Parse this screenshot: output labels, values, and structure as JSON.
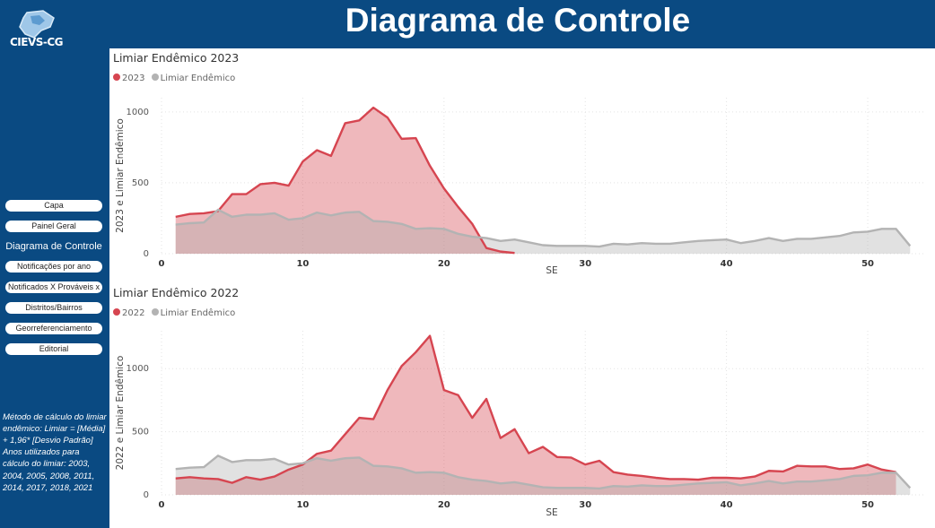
{
  "header": {
    "title": "Diagrama de Controle"
  },
  "logo": {
    "text": "CIEVS-CG"
  },
  "nav": {
    "items": [
      {
        "label": "Capa",
        "active": false
      },
      {
        "label": "Painel Geral",
        "active": false
      },
      {
        "label": "Diagrama de Controle",
        "active": true
      },
      {
        "label": "Notificações por ano",
        "active": false
      },
      {
        "label": "Notificados X Prováveis x",
        "active": false
      },
      {
        "label": "Distritos/Bairros",
        "active": false
      },
      {
        "label": "Georreferenciamento",
        "active": false
      },
      {
        "label": "Editorial",
        "active": false
      }
    ]
  },
  "method_note": "Método de cálculo do limiar endêmico: Limiar = [Média] + 1,96* [Desvio Padrão] Anos utilizados para cálculo do limiar: 2003, 2004, 2005, 2008, 2011, 2014, 2017, 2018, 2021",
  "colors": {
    "year_series": "#d64550",
    "threshold_series": "#b3b3b3"
  },
  "chart_data": [
    {
      "type": "area",
      "title": "Limiar Endêmico 2023",
      "xlabel": "SE",
      "ylabel": "2023 e Limiar Endêmico",
      "xlim": [
        0,
        54
      ],
      "ylim": [
        0,
        1100
      ],
      "xticks": [
        0,
        10,
        20,
        30,
        40,
        50
      ],
      "yticks": [
        0,
        500,
        1000
      ],
      "grid": true,
      "legend_position": "top-left",
      "series": [
        {
          "name": "2023",
          "color": "#d64550",
          "x": [
            1,
            2,
            3,
            4,
            5,
            6,
            7,
            8,
            9,
            10,
            11,
            12,
            13,
            14,
            15,
            16,
            17,
            18,
            19,
            20,
            21,
            22,
            23,
            24,
            25
          ],
          "values": [
            260,
            280,
            285,
            300,
            420,
            420,
            490,
            500,
            480,
            650,
            730,
            690,
            920,
            940,
            1030,
            960,
            810,
            815,
            620,
            460,
            330,
            210,
            40,
            15,
            5
          ]
        },
        {
          "name": "Limiar Endêmico",
          "color": "#b3b3b3",
          "x": [
            1,
            2,
            3,
            4,
            5,
            6,
            7,
            8,
            9,
            10,
            11,
            12,
            13,
            14,
            15,
            16,
            17,
            18,
            19,
            20,
            21,
            22,
            23,
            24,
            25,
            26,
            27,
            28,
            29,
            30,
            31,
            32,
            33,
            34,
            35,
            36,
            37,
            38,
            39,
            40,
            41,
            42,
            43,
            44,
            45,
            46,
            47,
            48,
            49,
            50,
            51,
            52,
            53
          ],
          "values": [
            205,
            215,
            220,
            310,
            260,
            275,
            275,
            285,
            240,
            250,
            290,
            270,
            290,
            295,
            230,
            225,
            210,
            175,
            180,
            175,
            140,
            120,
            110,
            90,
            100,
            80,
            60,
            55,
            55,
            55,
            50,
            70,
            65,
            75,
            70,
            70,
            80,
            90,
            95,
            100,
            75,
            90,
            110,
            90,
            105,
            105,
            115,
            125,
            150,
            155,
            175,
            175,
            55
          ]
        }
      ]
    },
    {
      "type": "area",
      "title": "Limiar Endêmico 2022",
      "xlabel": "SE",
      "ylabel": "2022 e Limiar Endêmico",
      "xlim": [
        0,
        54
      ],
      "ylim": [
        0,
        1300
      ],
      "xticks": [
        0,
        10,
        20,
        30,
        40,
        50
      ],
      "yticks": [
        0,
        500,
        1000
      ],
      "grid": true,
      "legend_position": "top-left",
      "series": [
        {
          "name": "2022",
          "color": "#d64550",
          "x": [
            1,
            2,
            3,
            4,
            5,
            6,
            7,
            8,
            9,
            10,
            11,
            12,
            13,
            14,
            15,
            16,
            17,
            18,
            19,
            20,
            21,
            22,
            23,
            24,
            25,
            26,
            27,
            28,
            29,
            30,
            31,
            32,
            33,
            34,
            35,
            36,
            37,
            38,
            39,
            40,
            41,
            42,
            43,
            44,
            45,
            46,
            47,
            48,
            49,
            50,
            51,
            52
          ],
          "values": [
            130,
            140,
            130,
            125,
            95,
            140,
            120,
            145,
            200,
            240,
            325,
            350,
            480,
            610,
            600,
            830,
            1020,
            1130,
            1260,
            830,
            790,
            610,
            760,
            450,
            520,
            330,
            380,
            300,
            295,
            240,
            270,
            180,
            160,
            150,
            135,
            125,
            125,
            120,
            135,
            135,
            130,
            145,
            190,
            185,
            230,
            225,
            225,
            205,
            210,
            240,
            200,
            180
          ]
        },
        {
          "name": "Limiar Endêmico",
          "color": "#b3b3b3",
          "x": [
            1,
            2,
            3,
            4,
            5,
            6,
            7,
            8,
            9,
            10,
            11,
            12,
            13,
            14,
            15,
            16,
            17,
            18,
            19,
            20,
            21,
            22,
            23,
            24,
            25,
            26,
            27,
            28,
            29,
            30,
            31,
            32,
            33,
            34,
            35,
            36,
            37,
            38,
            39,
            40,
            41,
            42,
            43,
            44,
            45,
            46,
            47,
            48,
            49,
            50,
            51,
            52,
            53
          ],
          "values": [
            205,
            215,
            220,
            310,
            260,
            275,
            275,
            285,
            240,
            250,
            290,
            270,
            290,
            295,
            230,
            225,
            210,
            175,
            180,
            175,
            140,
            120,
            110,
            90,
            100,
            80,
            60,
            55,
            55,
            55,
            50,
            70,
            65,
            75,
            70,
            70,
            80,
            90,
            95,
            100,
            75,
            90,
            110,
            90,
            105,
            105,
            115,
            125,
            150,
            155,
            175,
            175,
            55
          ]
        }
      ]
    }
  ]
}
